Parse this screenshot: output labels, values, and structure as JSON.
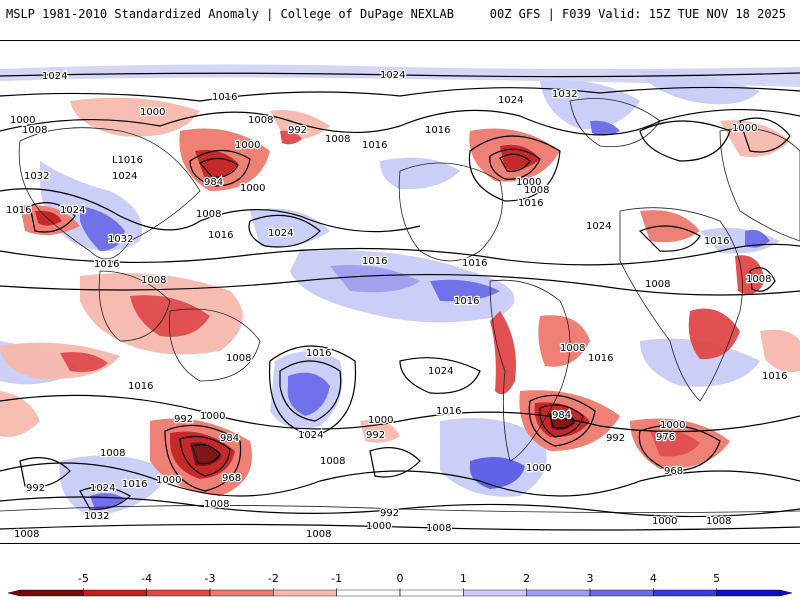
{
  "header": {
    "title_left": "MSLP 1981-2010 Standardized Anomaly | College of DuPage NEXLAB",
    "title_right": "00Z GFS | F039 Valid: 15Z TUE NOV 18 2025"
  },
  "colorbar": {
    "ticks": [
      "-5",
      "-4",
      "-3",
      "-2",
      "-1",
      "0",
      "1",
      "2",
      "3",
      "4",
      "5"
    ],
    "colors": [
      "#7a0a0a",
      "#c41e1e",
      "#e04848",
      "#ee7a6e",
      "#f7b9ad",
      "#ffffff",
      "#ffffff",
      "#c9ccf6",
      "#9c9cf0",
      "#6a6ae8",
      "#3a3ae0",
      "#1010c8"
    ]
  },
  "isobar_labels": [
    "1024",
    "1024",
    "1016",
    "1000",
    "1000",
    "1008",
    "992",
    "1024",
    "1032",
    "1008",
    "1016",
    "1000",
    "1032",
    "L1016",
    "1024",
    "1000",
    "984",
    "1000",
    "1016",
    "1008",
    "1000",
    "1008",
    "1016",
    "1024",
    "1024",
    "1016",
    "1032",
    "1016",
    "1024",
    "1016",
    "1008",
    "1016",
    "1016",
    "1016",
    "1008",
    "1016",
    "1016",
    "1008",
    "1024",
    "1008",
    "1008",
    "1016",
    "1016",
    "1008",
    "1016",
    "992",
    "1000",
    "1024",
    "984",
    "992",
    "1000",
    "1016",
    "984",
    "992",
    "1000",
    "976",
    "1008",
    "1000",
    "968",
    "1008",
    "968",
    "992",
    "1024",
    "1016",
    "1000",
    "1008",
    "1032",
    "992",
    "1008",
    "1000",
    "1008",
    "1000",
    "1008",
    "1008"
  ]
}
